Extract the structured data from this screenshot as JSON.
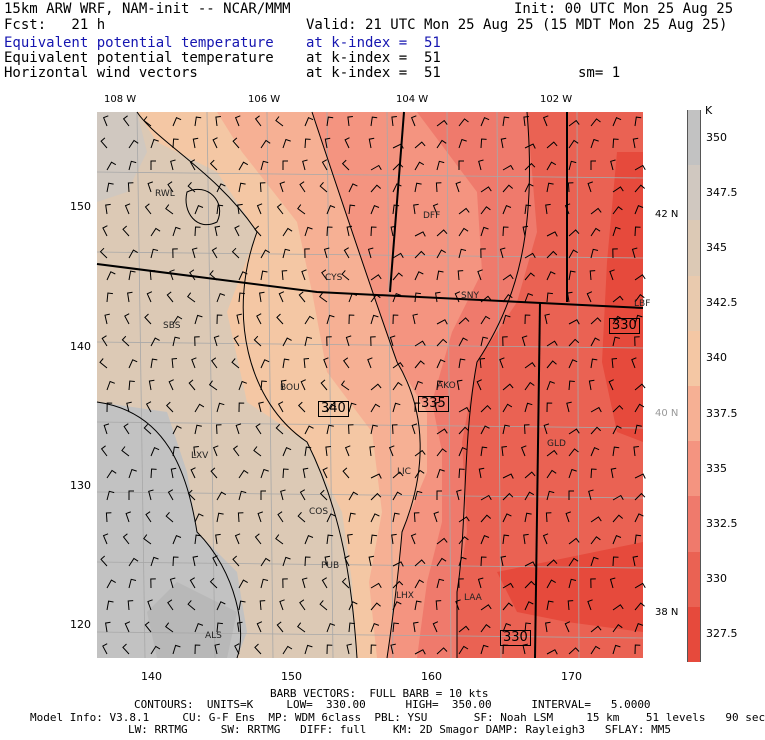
{
  "header": {
    "line1_left": "15km ARW WRF, NAM-init -- NCAR/MMM",
    "line1_right": "Init: 00 UTC Mon 25 Aug 25",
    "line2_left": "Fcst:   21 h",
    "line2_right": "Valid: 21 UTC Mon 25 Aug 25 (15 MDT Mon 25 Aug 25)",
    "field1_name": "Equivalent potential temperature",
    "field1_level": "at k-index =  51",
    "field2_name": "Equivalent potential temperature",
    "field2_level": "at k-index =  51",
    "field3_name": "Horizontal wind vectors",
    "field3_level": "at k-index =  51",
    "smoothing": "sm= 1"
  },
  "top_longitudes": [
    "108 W",
    "106 W",
    "104 W",
    "102 W"
  ],
  "left_ticks": [
    "150",
    "140",
    "130",
    "120"
  ],
  "bottom_ticks": [
    "140",
    "150",
    "160",
    "170"
  ],
  "right_lats": [
    "42 N",
    "40 N",
    "38 N"
  ],
  "colorbar": {
    "unit": "K",
    "labels": [
      "350",
      "347.5",
      "345",
      "342.5",
      "340",
      "337.5",
      "335",
      "332.5",
      "330",
      "327.5"
    ],
    "colors": [
      "#c2c2c2",
      "#d0c8c0",
      "#dcc9b5",
      "#e9caae",
      "#f4c7a4",
      "#f6b094",
      "#f49480",
      "#ef7a6c",
      "#ea6253",
      "#e64a3c"
    ]
  },
  "cities": [
    "RWL",
    "DFF",
    "CYS",
    "SNY",
    "LBF",
    "SBS",
    "BOU",
    "AKO",
    "LXV",
    "LIC",
    "GLD",
    "COS",
    "PUB",
    "LHX",
    "LAA",
    "ALS"
  ],
  "contour_labels": [
    "340",
    "335",
    "330",
    "330"
  ],
  "footer": {
    "barb": "BARB VECTORS:  FULL BARB = 10 kts",
    "contours": "CONTOURS:  UNITS=K     LOW=  330.00      HIGH=  350.00      INTERVAL=   5.0000",
    "model1": "Model Info: V3.8.1     CU: G-F Ens  MP: WDM 6class  PBL: YSU       SF: Noah LSM     15 km    51 levels   90 sec",
    "model2": "LW: RRTMG     SW: RRTMG   DIFF: full    KM: 2D Smagor DAMP: Rayleigh3   SFLAY: MM5"
  }
}
